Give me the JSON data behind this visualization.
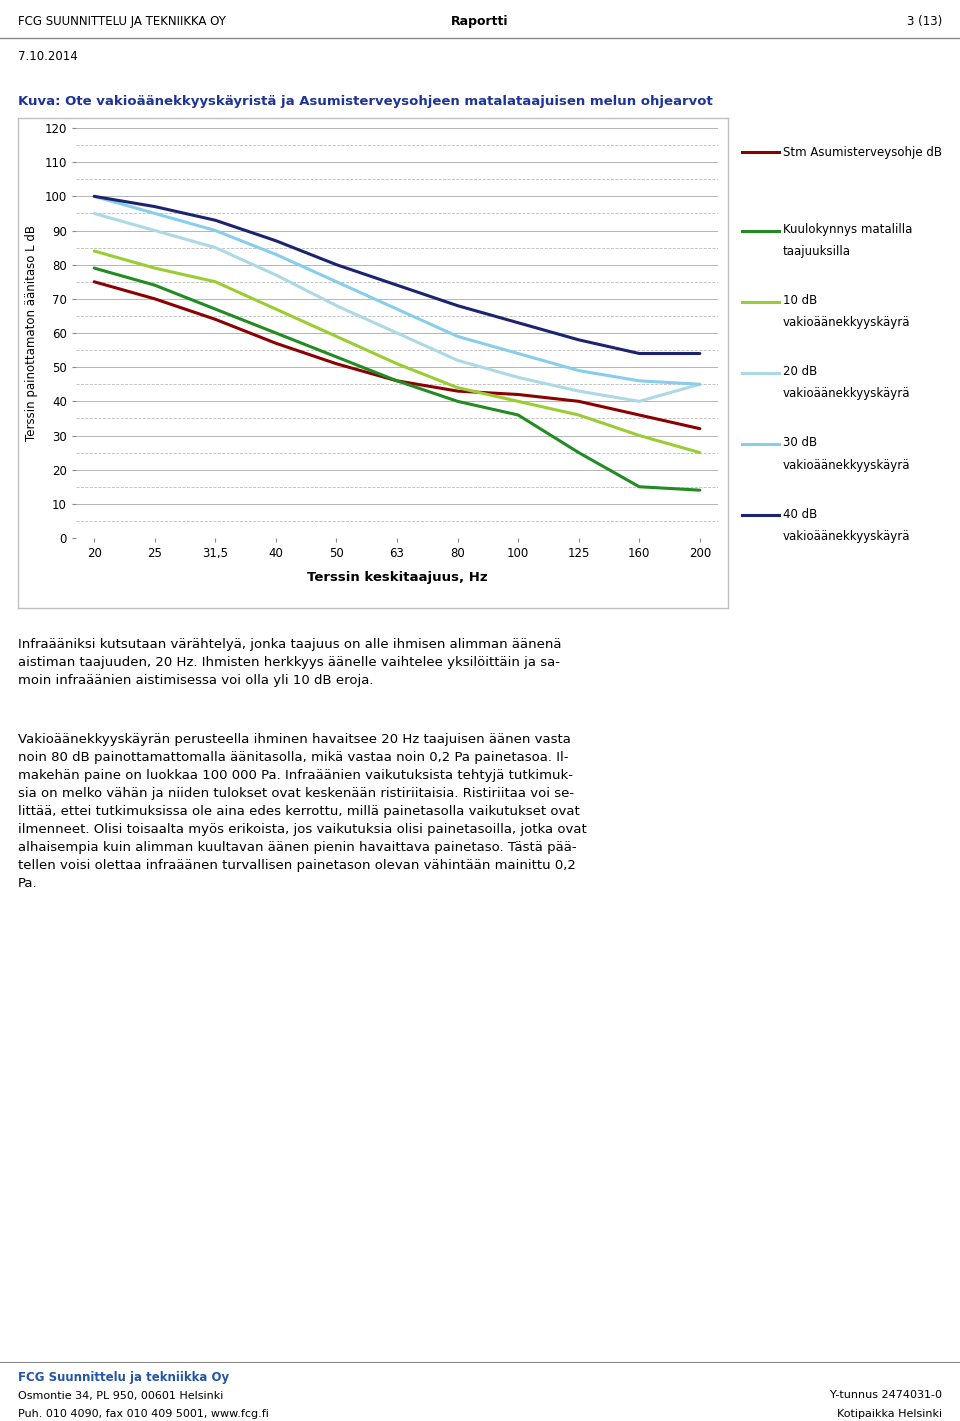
{
  "title": "Kuva: Ote vakioäänekkyyskäyristä ja Asumisterveysohjeen matalataajuisen melun ohjearvot",
  "ylabel": "Terssin painottamaton äänitaso L dB",
  "xlabel": "Terssin keskitaajuus, Hz",
  "xlabels": [
    "20",
    "25",
    "31,5",
    "40",
    "50",
    "63",
    "80",
    "100",
    "125",
    "160",
    "200"
  ],
  "ylim": [
    0,
    120
  ],
  "yticks": [
    0,
    10,
    20,
    30,
    40,
    50,
    60,
    70,
    80,
    90,
    100,
    110,
    120
  ],
  "series": [
    {
      "label": "Stm Asumisterveysohje dB",
      "color": "#8B0000",
      "linewidth": 2.2,
      "y": [
        75,
        70,
        64,
        57,
        51,
        46,
        43,
        42,
        40,
        36,
        32
      ]
    },
    {
      "label": "Kuulokynnys matalilla\ntaajuuksilla",
      "color": "#228B22",
      "linewidth": 2.2,
      "y": [
        79,
        74,
        67,
        60,
        53,
        46,
        40,
        36,
        25,
        15,
        14
      ]
    },
    {
      "label": "10 dB\nvakioäänekkyyskäyrä",
      "color": "#9ACD32",
      "linewidth": 2.2,
      "y": [
        84,
        79,
        75,
        67,
        59,
        51,
        44,
        40,
        36,
        30,
        25
      ]
    },
    {
      "label": "20 dB\nvakioäänekkyyskäyrä",
      "color": "#ADD8E6",
      "linewidth": 2.2,
      "y": [
        95,
        90,
        85,
        77,
        68,
        60,
        52,
        47,
        43,
        40,
        45
      ]
    },
    {
      "label": "30 dB\nvakioäänekkyyskäyrä",
      "color": "#87CEEB",
      "linewidth": 2.2,
      "y": [
        100,
        95,
        90,
        83,
        75,
        67,
        59,
        54,
        49,
        46,
        45
      ]
    },
    {
      "label": "40 dB\nvakioäänekkyyskäyrä",
      "color": "#1C2470",
      "linewidth": 2.2,
      "y": [
        100,
        97,
        93,
        87,
        80,
        74,
        68,
        63,
        58,
        54,
        54
      ]
    }
  ],
  "header_left": "FCG SUUNNITTELU JA TEKNIIKKA OY",
  "header_center": "Raportti",
  "header_right": "3 (13)",
  "date": "7.10.2014",
  "footer_company": "FCG Suunnittelu ja tekniikka Oy",
  "footer_address": "Osmontie 34, PL 950, 00601 Helsinki",
  "footer_phone": "Puh. 010 4090, fax 010 409 5001, www.fcg.fi",
  "footer_ytunnus": "Y-tunnus 2474031-0",
  "footer_kotipaikka": "Kotipaikka Helsinki",
  "body_text1": "Infraääniksi kutsutaan värähtelyä, jonka taajuus on alle ihmisen alimman äänenä\naistiman taajuuden, 20 Hz. Ihmisten herkkyys äänelle vaihtelee yksilöittäin ja sa-\nmoin infraäänien aistimisessa voi olla yli 10 dB eroja.",
  "body_text2": "Vakioäänekkyyskäyrän perusteella ihminen havaitsee 20 Hz taajuisen äänen vasta\nnoin 80 dB painottamattomalla äänitasolla, mikä vastaa noin 0,2 Pa painetasoa. Il-\nmakehän paine on luokkaa 100 000 Pa. Infraäänien vaikutuksista tehtyjä tutkimuk-\nsia on melko vähän ja niiden tulokset ovat keskenään ristiriitaisia. Ristiriitaa voi se-\nlittää, ettei tutkimuksissa ole aina edes kerrottu, millä painetasolla vaikutukset ovat\nilmenneet. Olisi toisaalta myös erikoista, jos vaikutuksia olisi painetasoilla, jotka ovat\nalhaisempia kuin alimman kuultavan äänen pienin havaittava painetaso. Tästä pää-\ntellen voisi olettaa infraäänen turvallisen painetason olevan vähintään mainittu 0,2\nPa.",
  "chart_border_color": "#C0C0C0",
  "grid_color": "#AAAAAA",
  "grid_dashed_color": "#BBBBBB",
  "footer_company_color": "#2255AA",
  "title_color": "#1F3496"
}
